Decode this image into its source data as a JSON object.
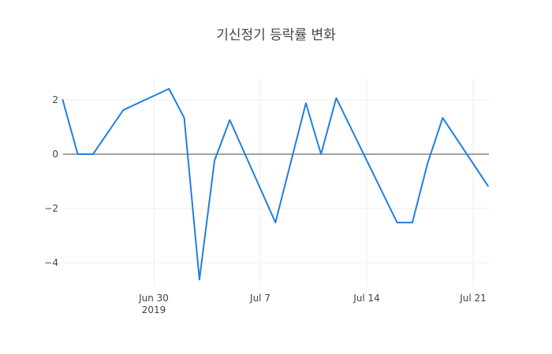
{
  "title": "기신정기 등락률 변화",
  "colors": {
    "line": "#1f7fe3",
    "zeroline": "#444444",
    "grid": "#eeeeee",
    "text": "#444444"
  },
  "chart_data": {
    "type": "line",
    "title": "기신정기 등락률 변화",
    "xlabel": "",
    "ylabel": "",
    "ylim": [
      -4.8,
      2.8
    ],
    "grid": true,
    "legend": "none",
    "x_tick_labels": [
      "Jun 30\n2019",
      "Jul 7",
      "Jul 14",
      "Jul 21"
    ],
    "y_tick_labels": [
      "2",
      "0",
      "−2",
      "−4"
    ],
    "x": [
      "2019-06-24",
      "2019-06-25",
      "2019-06-26",
      "2019-06-28",
      "2019-07-01",
      "2019-07-02",
      "2019-07-03",
      "2019-07-04",
      "2019-07-05",
      "2019-07-08",
      "2019-07-10",
      "2019-07-11",
      "2019-07-12",
      "2019-07-16",
      "2019-07-17",
      "2019-07-18",
      "2019-07-19",
      "2019-07-22"
    ],
    "series": [
      {
        "name": "등락률",
        "values": [
          2.02,
          0.0,
          0.0,
          1.63,
          2.41,
          1.34,
          -4.62,
          -0.23,
          1.26,
          -2.52,
          1.88,
          0.0,
          2.07,
          -2.52,
          -2.52,
          -0.35,
          1.34,
          -1.19
        ]
      }
    ]
  }
}
